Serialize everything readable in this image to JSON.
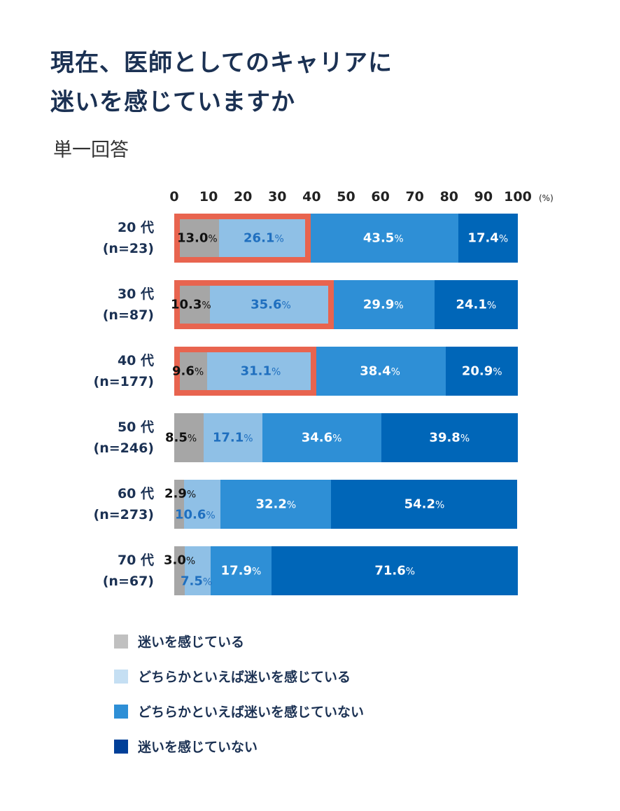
{
  "title_line1": "現在、医師としてのキャリアに",
  "title_line2": "迷いを感じていますか",
  "subtitle": "単一回答",
  "chart_data": {
    "type": "bar",
    "orientation": "horizontal-stacked-100",
    "xlim": [
      0,
      100
    ],
    "x_ticks": [
      "0",
      "10",
      "20",
      "30",
      "40",
      "50",
      "60",
      "70",
      "80",
      "90",
      "100"
    ],
    "x_unit": "(%)",
    "categories": [
      {
        "age": "20 代",
        "n": "(n=23)"
      },
      {
        "age": "30 代",
        "n": "(n=87)"
      },
      {
        "age": "40 代",
        "n": "(n=177)"
      },
      {
        "age": "50 代",
        "n": "(n=246)"
      },
      {
        "age": "60 代",
        "n": "(n=273)"
      },
      {
        "age": "70 代",
        "n": "(n=67)"
      }
    ],
    "series": [
      {
        "name": "迷いを感じている",
        "color": "#a6a6a6",
        "legend_color": "#c0c0c0",
        "label_color": "#111111",
        "values": [
          13.0,
          10.3,
          9.6,
          8.5,
          2.9,
          3.0
        ]
      },
      {
        "name": "どちらかといえば迷いを感じている",
        "color": "#8fc0e6",
        "legend_color": "#c5dff3",
        "label_color": "#1f6fbf",
        "values": [
          26.1,
          35.6,
          31.1,
          17.1,
          10.6,
          7.5
        ]
      },
      {
        "name": "どちらかといえば迷いを感じていない",
        "color": "#2e8fd6",
        "legend_color": "#2e8fd6",
        "label_color": "#ffffff",
        "values": [
          43.5,
          29.9,
          38.4,
          34.6,
          32.2,
          17.9
        ]
      },
      {
        "name": "迷いを感じていない",
        "color": "#0066b8",
        "legend_color": "#003f98",
        "label_color": "#ffffff",
        "values": [
          17.4,
          24.1,
          20.9,
          39.8,
          54.2,
          71.6
        ]
      }
    ],
    "highlighted_rows": [
      "20 代",
      "30 代",
      "40 代"
    ],
    "highlight_color": "#e8644f",
    "grid": false,
    "legend_position": "bottom"
  }
}
